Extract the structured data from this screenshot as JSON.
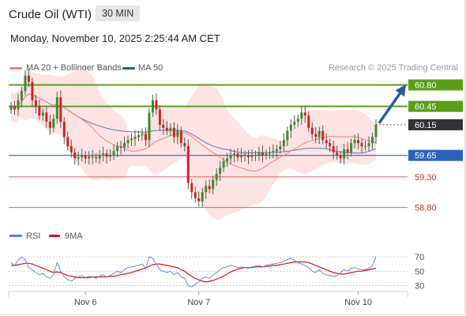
{
  "header": {
    "instrument": "Crude Oil (WTI)",
    "timeframe": "30 MIN",
    "datetime": "Monday, November 10, 2025 2:25:44 AM CET"
  },
  "legend": {
    "items": [
      {
        "label": "MA 20 + Bollinger Bands",
        "color": "#f08080"
      },
      {
        "label": "MA 50",
        "color": "#2c5aa0"
      }
    ],
    "copyright": "Research © 2025 Trading Central"
  },
  "rsi_legend": {
    "items": [
      {
        "label": "RSI",
        "color": "#5b7fd6"
      },
      {
        "label": "9MA",
        "color": "#e01010"
      }
    ]
  },
  "colors": {
    "resistance": "#5a9e1a",
    "support_blue": "#2b64b8",
    "support_red": "#e06060",
    "last_price": "#333333",
    "candle_up": "#3a8a2e",
    "candle_down": "#d42020",
    "bollinger_fill": "#fde0e0",
    "arrow": "#2c5aa0"
  },
  "chart_data": [
    {
      "type": "candlestick",
      "ylim": [
        58.55,
        61.0
      ],
      "x_ticks": [
        "Nov 6",
        "Nov 7",
        "Nov 10"
      ],
      "levels": [
        {
          "value": 60.8,
          "label": "60.80",
          "kind": "resistance"
        },
        {
          "value": 60.45,
          "label": "60.45",
          "kind": "resistance"
        },
        {
          "value": 60.15,
          "label": "60.15",
          "kind": "last"
        },
        {
          "value": 59.65,
          "label": "59.65",
          "kind": "pivot"
        },
        {
          "value": 59.3,
          "label": "59.30",
          "kind": "support"
        },
        {
          "value": 58.8,
          "label": "58.80",
          "kind": "support"
        }
      ],
      "close": [
        60.45,
        60.4,
        60.55,
        60.7,
        60.95,
        60.85,
        60.55,
        60.45,
        60.3,
        60.35,
        60.2,
        60.1,
        60.25,
        60.6,
        60.2,
        59.95,
        59.8,
        59.7,
        59.6,
        59.62,
        59.65,
        59.6,
        59.63,
        59.62,
        59.6,
        59.65,
        59.68,
        59.63,
        59.66,
        59.72,
        59.8,
        59.78,
        59.85,
        59.9,
        59.92,
        59.95,
        59.98,
        60.0,
        59.9,
        60.35,
        60.55,
        60.4,
        60.15,
        60.1,
        60.05,
        60.1,
        59.95,
        60.05,
        59.85,
        59.8,
        59.2,
        59.05,
        58.95,
        58.9,
        59.05,
        59.15,
        59.1,
        59.25,
        59.35,
        59.45,
        59.55,
        59.6,
        59.65,
        59.68,
        59.62,
        59.66,
        59.65,
        59.62,
        59.64,
        59.66,
        59.7,
        59.65,
        59.68,
        59.7,
        59.72,
        59.75,
        59.8,
        59.9,
        60.05,
        60.15,
        60.2,
        60.25,
        60.35,
        60.3,
        60.1,
        60.0,
        59.95,
        60.05,
        59.9,
        59.85,
        59.8,
        59.7,
        59.65,
        59.6,
        59.75,
        59.7,
        59.85,
        59.9,
        59.85,
        59.8,
        59.8,
        59.85,
        59.95,
        60.15
      ],
      "rsi": {
        "ylim": [
          25,
          80
        ],
        "ticks": [
          70,
          50,
          30
        ],
        "rsi": [
          62,
          58,
          65,
          70,
          66,
          55,
          52,
          48,
          45,
          47,
          42,
          40,
          45,
          62,
          50,
          42,
          38,
          36,
          40,
          42,
          44,
          41,
          43,
          42,
          40,
          43,
          45,
          42,
          44,
          47,
          50,
          48,
          52,
          55,
          56,
          57,
          58,
          60,
          54,
          70,
          68,
          60,
          52,
          50,
          48,
          50,
          45,
          48,
          42,
          40,
          30,
          28,
          32,
          35,
          40,
          42,
          40,
          45,
          48,
          52,
          55,
          56,
          58,
          57,
          55,
          56,
          55,
          54,
          56,
          57,
          58,
          56,
          58,
          59,
          60,
          61,
          62,
          64,
          66,
          68,
          65,
          62,
          60,
          58,
          55,
          50,
          48,
          52,
          47,
          45,
          44,
          42,
          44,
          48,
          52,
          50,
          54,
          55,
          53,
          52,
          52,
          54,
          58,
          70
        ],
        "ma9": [
          58,
          58,
          59,
          60,
          61,
          61,
          60,
          58,
          56,
          54,
          52,
          50,
          48,
          49,
          48,
          46,
          44,
          43,
          42,
          41,
          41,
          41,
          41,
          42,
          42,
          42,
          42,
          42,
          43,
          43,
          44,
          45,
          46,
          47,
          48,
          50,
          51,
          53,
          54,
          57,
          59,
          60,
          60,
          59,
          58,
          57,
          56,
          55,
          52,
          50,
          46,
          43,
          40,
          38,
          36,
          35,
          36,
          37,
          39,
          41,
          43,
          46,
          49,
          51,
          53,
          54,
          55,
          55,
          55,
          56,
          56,
          56,
          57,
          57,
          58,
          58,
          59,
          60,
          61,
          62,
          63,
          63,
          63,
          63,
          62,
          60,
          58,
          56,
          54,
          52,
          50,
          48,
          47,
          46,
          46,
          47,
          48,
          49,
          50,
          50,
          51,
          52,
          53,
          54
        ]
      }
    }
  ]
}
